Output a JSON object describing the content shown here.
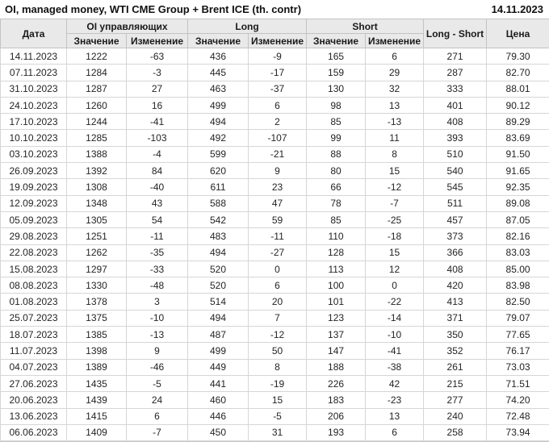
{
  "page": {
    "title": "OI, managed money, WTI CME Group + Brent ICE (th. contr)",
    "report_date": "14.11.2023"
  },
  "chart_data": {
    "type": "table",
    "title": "OI, managed money, WTI CME Group + Brent ICE (th. contr)",
    "as_of_date": "14.11.2023",
    "columns": {
      "date": "Дата",
      "oi_group": "OI управляющих",
      "long_group": "Long",
      "short_group": "Short",
      "value": "Значение",
      "change": "Изменение",
      "long_short": "Long - Short",
      "price": "Цена"
    },
    "cell_roles": [
      "date-cell",
      "oi-value-cell",
      "oi-change-cell",
      "long-value-cell",
      "long-change-cell",
      "short-value-cell",
      "short-change-cell",
      "long-short-cell",
      "price-cell"
    ],
    "colors": {
      "positive": "#119911",
      "negative": "#cc2222",
      "header_bg": "#e9e9e9",
      "border": "#d6d6d6"
    },
    "rows": [
      {
        "cells": [
          "14.11.2023",
          "1222",
          "-63",
          "436",
          "-9",
          "165",
          "6",
          "271",
          "79.30"
        ],
        "change_colors": [
          "n",
          "n",
          "p"
        ]
      },
      {
        "cells": [
          "07.11.2023",
          "1284",
          "-3",
          "445",
          "-17",
          "159",
          "29",
          "287",
          "82.70"
        ],
        "change_colors": [
          "n",
          "n",
          "p"
        ]
      },
      {
        "cells": [
          "31.10.2023",
          "1287",
          "27",
          "463",
          "-37",
          "130",
          "32",
          "333",
          "88.01"
        ],
        "change_colors": [
          "p",
          "n",
          "p"
        ]
      },
      {
        "cells": [
          "24.10.2023",
          "1260",
          "16",
          "499",
          "6",
          "98",
          "13",
          "401",
          "90.12"
        ],
        "change_colors": [
          "p",
          "p",
          "p"
        ]
      },
      {
        "cells": [
          "17.10.2023",
          "1244",
          "-41",
          "494",
          "2",
          "85",
          "-13",
          "408",
          "89.29"
        ],
        "change_colors": [
          "n",
          "p",
          "n"
        ]
      },
      {
        "cells": [
          "10.10.2023",
          "1285",
          "-103",
          "492",
          "-107",
          "99",
          "11",
          "393",
          "83.69"
        ],
        "change_colors": [
          "n",
          "n",
          "p"
        ]
      },
      {
        "cells": [
          "03.10.2023",
          "1388",
          "-4",
          "599",
          "-21",
          "88",
          "8",
          "510",
          "91.50"
        ],
        "change_colors": [
          "n",
          "n",
          "p"
        ]
      },
      {
        "cells": [
          "26.09.2023",
          "1392",
          "84",
          "620",
          "9",
          "80",
          "15",
          "540",
          "91.65"
        ],
        "change_colors": [
          "p",
          "p",
          "p"
        ]
      },
      {
        "cells": [
          "19.09.2023",
          "1308",
          "-40",
          "611",
          "23",
          "66",
          "-12",
          "545",
          "92.35"
        ],
        "change_colors": [
          "n",
          "p",
          "n"
        ]
      },
      {
        "cells": [
          "12.09.2023",
          "1348",
          "43",
          "588",
          "47",
          "78",
          "-7",
          "511",
          "89.08"
        ],
        "change_colors": [
          "p",
          "p",
          "n"
        ]
      },
      {
        "cells": [
          "05.09.2023",
          "1305",
          "54",
          "542",
          "59",
          "85",
          "-25",
          "457",
          "87.05"
        ],
        "change_colors": [
          "p",
          "p",
          "n"
        ]
      },
      {
        "cells": [
          "29.08.2023",
          "1251",
          "-11",
          "483",
          "-11",
          "110",
          "-18",
          "373",
          "82.16"
        ],
        "change_colors": [
          "n",
          "n",
          "n"
        ]
      },
      {
        "cells": [
          "22.08.2023",
          "1262",
          "-35",
          "494",
          "-27",
          "128",
          "15",
          "366",
          "83.03"
        ],
        "change_colors": [
          "n",
          "n",
          "p"
        ]
      },
      {
        "cells": [
          "15.08.2023",
          "1297",
          "-33",
          "520",
          "0",
          "113",
          "12",
          "408",
          "85.00"
        ],
        "change_colors": [
          "n",
          "p",
          "p"
        ]
      },
      {
        "cells": [
          "08.08.2023",
          "1330",
          "-48",
          "520",
          "6",
          "100",
          "0",
          "420",
          "83.98"
        ],
        "change_colors": [
          "n",
          "p",
          "n"
        ]
      },
      {
        "cells": [
          "01.08.2023",
          "1378",
          "3",
          "514",
          "20",
          "101",
          "-22",
          "413",
          "82.50"
        ],
        "change_colors": [
          "p",
          "p",
          "n"
        ]
      },
      {
        "cells": [
          "25.07.2023",
          "1375",
          "-10",
          "494",
          "7",
          "123",
          "-14",
          "371",
          "79.07"
        ],
        "change_colors": [
          "n",
          "p",
          "n"
        ]
      },
      {
        "cells": [
          "18.07.2023",
          "1385",
          "-13",
          "487",
          "-12",
          "137",
          "-10",
          "350",
          "77.65"
        ],
        "change_colors": [
          "n",
          "n",
          "n"
        ]
      },
      {
        "cells": [
          "11.07.2023",
          "1398",
          "9",
          "499",
          "50",
          "147",
          "-41",
          "352",
          "76.17"
        ],
        "change_colors": [
          "p",
          "p",
          "n"
        ]
      },
      {
        "cells": [
          "04.07.2023",
          "1389",
          "-46",
          "449",
          "8",
          "188",
          "-38",
          "261",
          "73.03"
        ],
        "change_colors": [
          "n",
          "p",
          "n"
        ]
      },
      {
        "cells": [
          "27.06.2023",
          "1435",
          "-5",
          "441",
          "-19",
          "226",
          "42",
          "215",
          "71.51"
        ],
        "change_colors": [
          "n",
          "n",
          "p"
        ]
      },
      {
        "cells": [
          "20.06.2023",
          "1439",
          "24",
          "460",
          "15",
          "183",
          "-23",
          "277",
          "74.20"
        ],
        "change_colors": [
          "p",
          "p",
          "n"
        ]
      },
      {
        "cells": [
          "13.06.2023",
          "1415",
          "6",
          "446",
          "-5",
          "206",
          "13",
          "240",
          "72.48"
        ],
        "change_colors": [
          "p",
          "n",
          "p"
        ]
      },
      {
        "cells": [
          "06.06.2023",
          "1409",
          "-7",
          "450",
          "31",
          "193",
          "6",
          "258",
          "73.94"
        ],
        "change_colors": [
          "n",
          "p",
          "p"
        ]
      }
    ]
  }
}
